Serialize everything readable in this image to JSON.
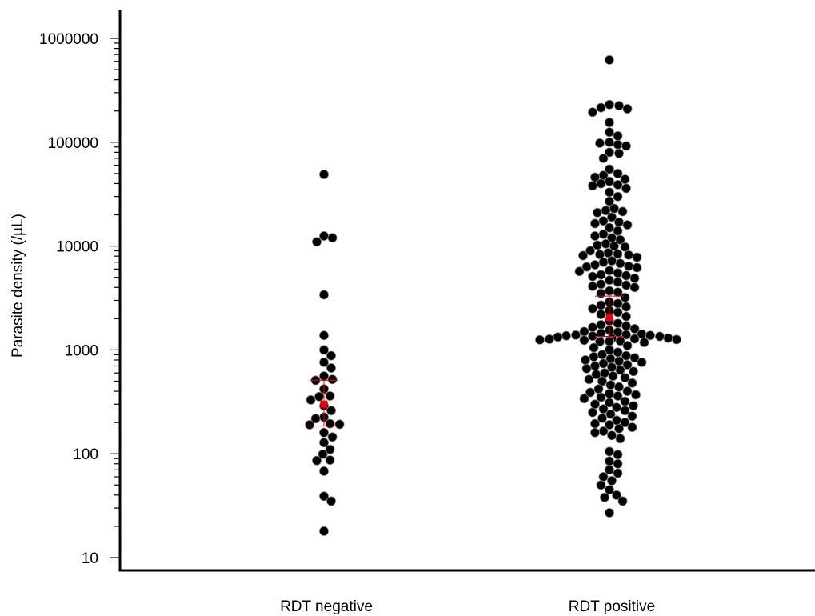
{
  "chart_data": {
    "type": "scatter",
    "title": "",
    "xlabel": "",
    "ylabel": "Parasite density (/µL)",
    "y_scale": "log",
    "ylim": [
      10,
      1000000
    ],
    "grid": false,
    "legend": "none",
    "categories": [
      "RDT negative",
      "RDT positive"
    ],
    "y_ticks": [
      {
        "value": 10,
        "label": "10"
      },
      {
        "value": 100,
        "label": "100"
      },
      {
        "value": 1000,
        "label": "1000"
      },
      {
        "value": 10000,
        "label": "10000"
      },
      {
        "value": 100000,
        "label": "100000"
      },
      {
        "value": 1000000,
        "label": "1000000"
      }
    ],
    "colors": {
      "point": "#000000",
      "point_edge": "#ffffff",
      "summary": "#e8000b",
      "axis": "#000000"
    },
    "series": [
      {
        "category": "RDT negative",
        "values": [
          18,
          35,
          39,
          68,
          86,
          87,
          99,
          110,
          128,
          145,
          160,
          190,
          192,
          195,
          218,
          225,
          260,
          290,
          330,
          355,
          360,
          420,
          510,
          520,
          560,
          670,
          760,
          880,
          1000,
          1380,
          3400,
          11000,
          12000,
          12500,
          49000
        ],
        "summary": {
          "center": 300,
          "lower": 185,
          "upper": 510
        }
      },
      {
        "category": "RDT positive",
        "values": [
          620000,
          230000,
          225000,
          215000,
          210000,
          195000,
          155000,
          125000,
          115000,
          100000,
          98000,
          95000,
          92000,
          80000,
          78000,
          70000,
          55000,
          50000,
          48000,
          46000,
          44000,
          42000,
          40000,
          39000,
          38000,
          36000,
          33000,
          30000,
          27000,
          23000,
          22000,
          21500,
          21000,
          19000,
          17500,
          17000,
          16500,
          16000,
          15000,
          14000,
          13000,
          12500,
          12000,
          11500,
          10500,
          10200,
          10000,
          9800,
          9000,
          8600,
          8400,
          8300,
          8200,
          8100,
          7800,
          7200,
          7000,
          6800,
          6600,
          6400,
          6300,
          6200,
          5800,
          5700,
          5500,
          5300,
          5200,
          5100,
          4900,
          4700,
          4500,
          4300,
          4200,
          4100,
          4000,
          3700,
          3600,
          3500,
          3200,
          2900,
          2800,
          2700,
          2600,
          2500,
          2400,
          2300,
          2200,
          2100,
          1900,
          1800,
          1750,
          1700,
          1650,
          1600,
          1550,
          1500,
          1480,
          1450,
          1420,
          1400,
          1390,
          1380,
          1370,
          1360,
          1350,
          1330,
          1300,
          1290,
          1280,
          1270,
          1260,
          1250,
          1240,
          1230,
          1220,
          1210,
          1200,
          1180,
          1100,
          1050,
          1000,
          950,
          900,
          880,
          860,
          840,
          820,
          800,
          780,
          760,
          740,
          720,
          700,
          680,
          660,
          640,
          620,
          600,
          580,
          560,
          540,
          520,
          500,
          480,
          460,
          440,
          420,
          400,
          390,
          380,
          370,
          360,
          350,
          340,
          320,
          310,
          300,
          290,
          280,
          270,
          260,
          250,
          240,
          230,
          220,
          210,
          200,
          195,
          190,
          180,
          175,
          165,
          160,
          150,
          140,
          105,
          98,
          85,
          80,
          70,
          65,
          60,
          55,
          50,
          45,
          40,
          38,
          35,
          27
        ],
        "summary": {
          "center": 2050,
          "lower": 1350,
          "upper": 3300
        }
      }
    ]
  }
}
